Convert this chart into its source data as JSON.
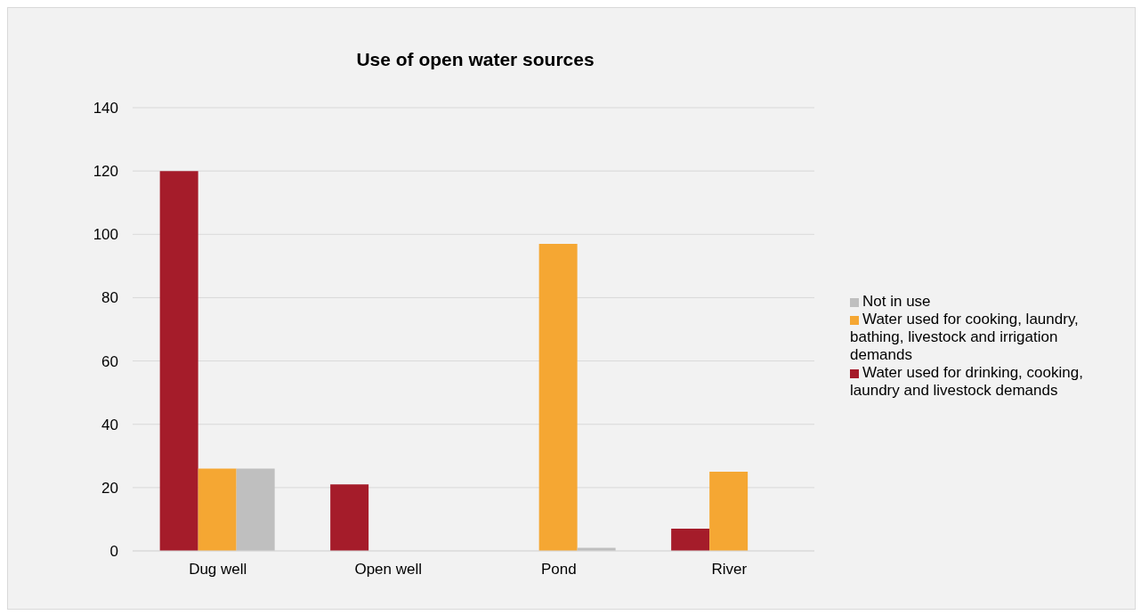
{
  "chart_data": {
    "type": "bar",
    "title": "Use of open water sources",
    "categories": [
      "Dug well",
      "Open well",
      "Pond",
      "River"
    ],
    "series": [
      {
        "name": "Water used for drinking, cooking, laundry and livestock demands",
        "color": "#a51c2a",
        "values": [
          120,
          21,
          0,
          7
        ]
      },
      {
        "name": "Water used for cooking, laundry, bathing, livestock and irrigation demands",
        "color": "#f5a733",
        "values": [
          26,
          0,
          97,
          25
        ]
      },
      {
        "name": "Not in use",
        "color": "#bfbfbf",
        "values": [
          26,
          0,
          1,
          0
        ]
      }
    ],
    "ylim": [
      0,
      140
    ],
    "yticks": [
      0,
      20,
      40,
      60,
      80,
      100,
      120,
      140
    ],
    "grid": "y",
    "legend": "right"
  }
}
